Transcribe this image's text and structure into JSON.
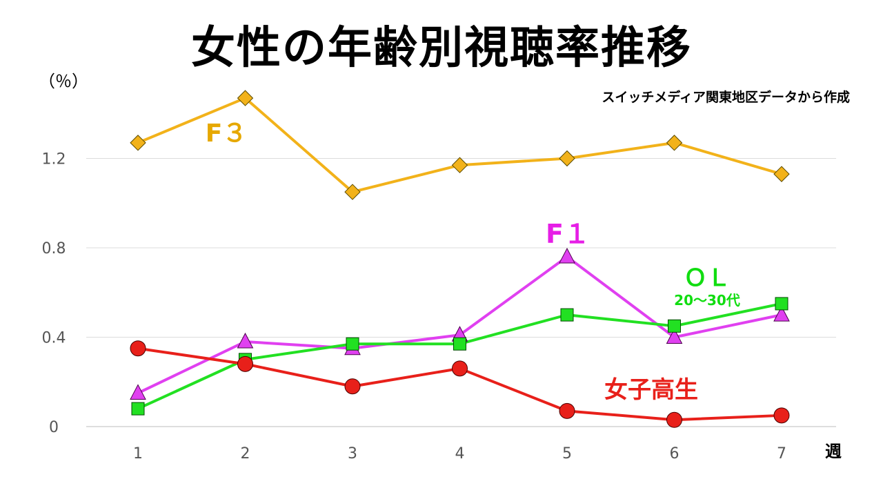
{
  "title": "女性の年齢別視聴率推移",
  "unit": "（％）",
  "source": "スイッチメディア関東地区データから作成",
  "chart_data": {
    "type": "line",
    "x": [
      1,
      2,
      3,
      4,
      5,
      6,
      7
    ],
    "xlabel": "週",
    "ylabel": "（％）",
    "ylim": [
      0,
      1.6
    ],
    "yticks": [
      0,
      0.4,
      0.8,
      1.2
    ],
    "ytick_labels": [
      "0",
      "0.4",
      "0.8",
      "1.2"
    ],
    "grid": true,
    "series": [
      {
        "name": "F3",
        "label_text": "F３",
        "marker": "diamond",
        "color": "#F2B21A",
        "label_color": "#E6A800",
        "values": [
          1.27,
          1.47,
          1.05,
          1.17,
          1.2,
          1.27,
          1.13
        ]
      },
      {
        "name": "F1",
        "label_text": "F１",
        "marker": "triangle",
        "color": "#E040F0",
        "label_color": "#E61EE6",
        "values": [
          0.15,
          0.38,
          0.35,
          0.41,
          0.76,
          0.4,
          0.5
        ]
      },
      {
        "name": "OL",
        "label_text": "ＯＬ",
        "sublabel": "20～30代",
        "marker": "square",
        "color": "#22E022",
        "label_color": "#11DD11",
        "values": [
          0.08,
          0.3,
          0.37,
          0.37,
          0.5,
          0.45,
          0.55
        ]
      },
      {
        "name": "女子高生",
        "label_text": "女子高生",
        "marker": "circle",
        "color": "#E8201A",
        "label_color": "#E8201A",
        "values": [
          0.35,
          0.28,
          0.18,
          0.26,
          0.07,
          0.03,
          0.05
        ]
      }
    ]
  }
}
